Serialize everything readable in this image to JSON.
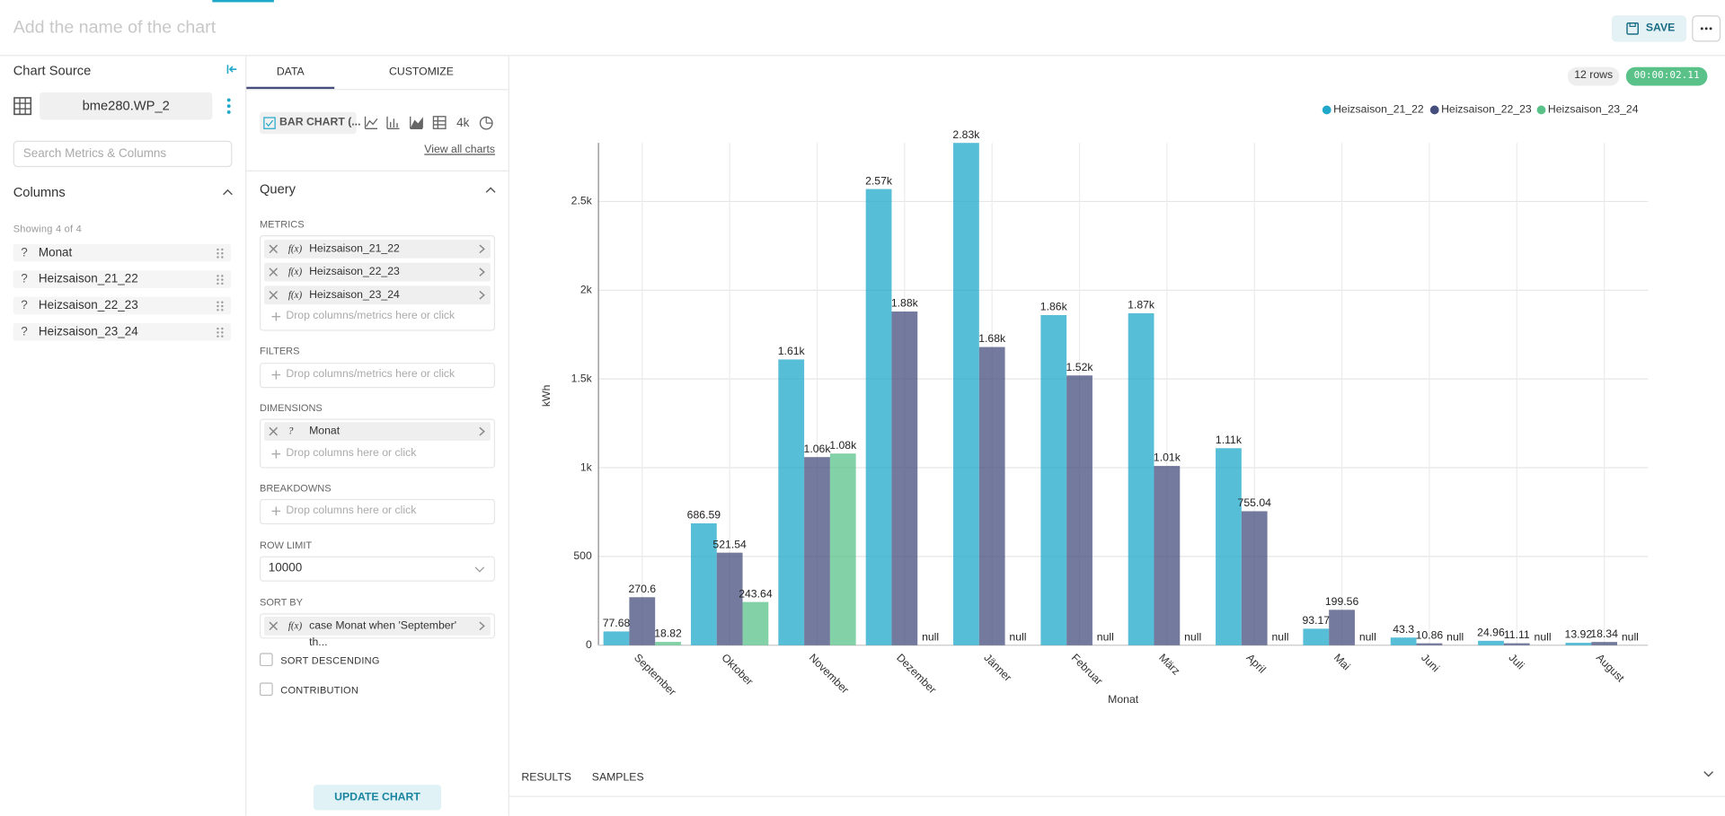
{
  "header": {
    "title_placeholder": "Add the name of the chart",
    "save": "SAVE"
  },
  "left_panel": {
    "title": "Chart Source",
    "dataset": "bme280.WP_2",
    "search_placeholder": "Search Metrics & Columns",
    "columns_title": "Columns",
    "showing": "Showing 4 of 4",
    "column_icon": "?",
    "columns": [
      "Monat",
      "Heizsaison_21_22",
      "Heizsaison_22_23",
      "Heizsaison_23_24"
    ]
  },
  "control_panel": {
    "tabs": [
      "DATA",
      "CUSTOMIZE"
    ],
    "chart_type": "BAR CHART (...",
    "chart_icon_label": "4k",
    "view_all": "View all charts",
    "query_title": "Query",
    "metric_icon": "f(x)",
    "column_icon": "?",
    "metrics_label": "METRICS",
    "metrics": [
      "Heizsaison_21_22",
      "Heizsaison_22_23",
      "Heizsaison_23_24"
    ],
    "metrics_drop": "Drop columns/metrics here or click",
    "filters_label": "FILTERS",
    "filters_drop": "Drop columns/metrics here or click",
    "dimensions_label": "DIMENSIONS",
    "dimensions": [
      "Monat"
    ],
    "dimensions_drop": "Drop columns here or click",
    "breakdowns_label": "BREAKDOWNS",
    "breakdowns_drop": "Drop columns here or click",
    "row_limit_label": "ROW LIMIT",
    "row_limit": "10000",
    "sort_by_label": "SORT BY",
    "sort_by": "case Monat when 'September' th...",
    "sort_descending": "SORT DESCENDING",
    "contribution": "CONTRIBUTION",
    "update": "UPDATE CHART"
  },
  "chart_panel": {
    "row_count": "12 rows",
    "timer": "00:00:02.11",
    "tabs": [
      "RESULTS",
      "SAMPLES"
    ]
  },
  "chart_data": {
    "type": "bar",
    "x_label": "Monat",
    "y_label": "kWh",
    "categories": [
      "September",
      "Oktober",
      "November",
      "Dezember",
      "Jänner",
      "Februar",
      "März",
      "April",
      "Mai",
      "Juni",
      "Juli",
      "August"
    ],
    "series": [
      {
        "name": "Heizsaison_21_22",
        "color": "#1FA8C9",
        "values": [
          77.68,
          686.59,
          1610,
          2570,
          2830,
          1860,
          1870,
          1110,
          93.17,
          43.3,
          24.96,
          13.92
        ],
        "value_labels": [
          "77.68",
          "686.59",
          "1.61k",
          "2.57k",
          "2.83k",
          "1.86k",
          "1.87k",
          "1.11k",
          "93.17",
          "43.3",
          "24.96",
          "13.92"
        ]
      },
      {
        "name": "Heizsaison_22_23",
        "color": "#454E7C",
        "values": [
          270.6,
          521.54,
          1060,
          1880,
          1680,
          1520,
          1010,
          755.04,
          199.56,
          10.86,
          11.11,
          18.34
        ],
        "value_labels": [
          "270.6",
          "521.54",
          "1.06k",
          "1.88k",
          "1.68k",
          "1.52k",
          "1.01k",
          "755.04",
          "199.56",
          "10.86",
          "11.11",
          "18.34"
        ]
      },
      {
        "name": "Heizsaison_23_24",
        "color": "#5AC189",
        "values": [
          18.82,
          243.64,
          1080,
          null,
          null,
          null,
          null,
          null,
          null,
          null,
          null,
          null
        ],
        "value_labels": [
          "18.82",
          "243.64",
          "1.08k",
          "null",
          "null",
          "null",
          "null",
          "null",
          "null",
          "null",
          "null",
          "null"
        ]
      }
    ],
    "ylim": [
      0,
      2830
    ],
    "yticks": [
      0,
      500,
      {
        "value": 1000,
        "label": "1k"
      },
      {
        "value": 1500,
        "label": "1.5k"
      },
      {
        "value": 2000,
        "label": "2k"
      },
      {
        "value": 2500,
        "label": "2.5k"
      }
    ],
    "grid": true,
    "legend": "top-right"
  }
}
